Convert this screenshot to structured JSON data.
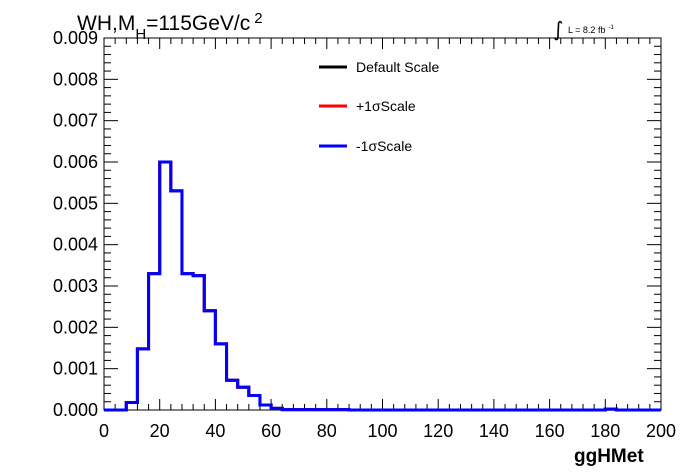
{
  "chart_data": {
    "type": "line",
    "title_main": "WH,M",
    "title_sub": "H",
    "title_rest": "=115GeV/c",
    "title_sup": "2",
    "lumi_label": "L = 8.2 fb",
    "lumi_sup": "-1",
    "xlabel": "ggHMet",
    "ylabel": "",
    "xlim": [
      0,
      200
    ],
    "ylim": [
      0,
      0.009
    ],
    "x_ticks": [
      "0",
      "20",
      "40",
      "60",
      "80",
      "100",
      "120",
      "140",
      "160",
      "180",
      "200"
    ],
    "y_ticks": [
      "0.000",
      "0.001",
      "0.002",
      "0.003",
      "0.004",
      "0.005",
      "0.006",
      "0.007",
      "0.008",
      "0.009"
    ],
    "bin_edges": [
      0,
      4,
      8,
      12,
      16,
      20,
      24,
      28,
      32,
      36,
      40,
      44,
      48,
      52,
      56,
      60,
      64,
      68,
      72,
      76,
      80,
      84,
      88,
      92,
      96,
      100,
      104,
      108,
      112,
      116,
      120,
      124,
      128,
      132,
      136,
      140,
      144,
      148,
      152,
      156,
      160,
      164,
      168,
      172,
      176,
      180,
      184,
      188,
      192,
      196,
      200
    ],
    "series": [
      {
        "name": "Default Scale",
        "color": "#000000",
        "values": [
          0,
          0,
          0.00018,
          0.00148,
          0.0033,
          0.006,
          0.0053,
          0.0033,
          0.00325,
          0.0024,
          0.0016,
          0.00072,
          0.00055,
          0.00035,
          0.00012,
          4e-05,
          1e-05,
          1e-05,
          1e-05,
          1e-05,
          1e-05,
          1e-05,
          0,
          0,
          0,
          0,
          0,
          0,
          0,
          0,
          0,
          0,
          0,
          0,
          0,
          0,
          0,
          0,
          0,
          0,
          0,
          0,
          0,
          0,
          0,
          2e-05,
          0,
          0,
          0,
          0
        ]
      },
      {
        "name": "+1σScale",
        "color": "#ff0000",
        "values": [
          0,
          0,
          0.00018,
          0.00148,
          0.0033,
          0.006,
          0.0053,
          0.0033,
          0.00325,
          0.0024,
          0.0016,
          0.00072,
          0.00055,
          0.00035,
          0.00012,
          4e-05,
          1e-05,
          1e-05,
          1e-05,
          1e-05,
          1e-05,
          1e-05,
          0,
          0,
          0,
          0,
          0,
          0,
          0,
          0,
          0,
          0,
          0,
          0,
          0,
          0,
          0,
          0,
          0,
          0,
          0,
          0,
          0,
          0,
          0,
          2e-05,
          0,
          0,
          0,
          0
        ]
      },
      {
        "name": "-1σScale",
        "color": "#0000ff",
        "values": [
          0,
          0,
          0.00018,
          0.00148,
          0.0033,
          0.006,
          0.0053,
          0.0033,
          0.00325,
          0.0024,
          0.0016,
          0.00072,
          0.00055,
          0.00035,
          0.00012,
          4e-05,
          1e-05,
          1e-05,
          1e-05,
          1e-05,
          1e-05,
          1e-05,
          0,
          0,
          0,
          0,
          0,
          0,
          0,
          0,
          0,
          0,
          0,
          0,
          0,
          0,
          0,
          0,
          0,
          0,
          0,
          0,
          0,
          0,
          0,
          2e-05,
          0,
          0,
          0,
          0
        ]
      }
    ],
    "legend_placement": "top-center",
    "grid": false
  }
}
